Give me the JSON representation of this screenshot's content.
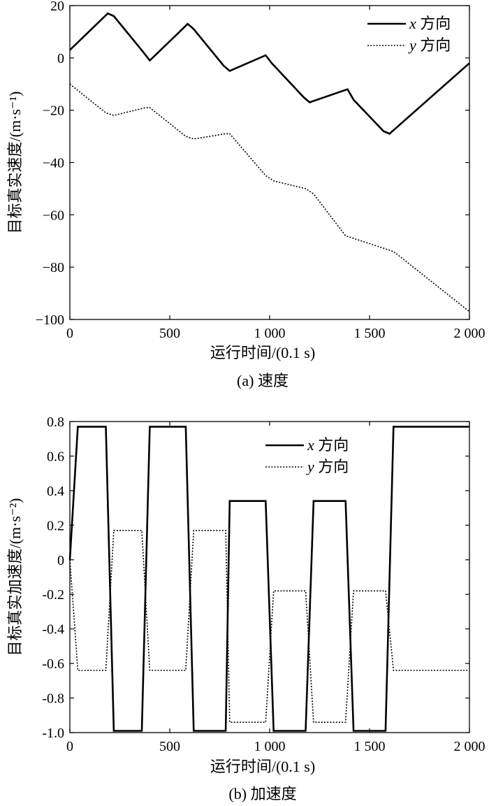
{
  "chart_data": [
    {
      "type": "line",
      "caption": "(a) 速度",
      "xlabel": "运行时间/(0.1 s)",
      "ylabel": "目标真实速度/(m·s⁻¹)",
      "xlim": [
        0,
        2000
      ],
      "ylim": [
        -100,
        20
      ],
      "xticks": [
        0,
        500,
        1000,
        1500,
        2000
      ],
      "xtick_labels": [
        "0",
        "500",
        "1 000",
        "1 500",
        "2 000"
      ],
      "yticks": [
        20,
        0,
        -20,
        -40,
        -60,
        -80,
        -100
      ],
      "ytick_labels": [
        "20",
        "0",
        "−20",
        "−40",
        "−60",
        "−80",
        "−100"
      ],
      "grid": false,
      "legend_position": "top-right",
      "series": [
        {
          "name": "x 方向",
          "style": "solid",
          "x": [
            0,
            190,
            220,
            370,
            400,
            590,
            620,
            770,
            800,
            980,
            1010,
            1170,
            1200,
            1390,
            1420,
            1570,
            1600,
            2000
          ],
          "y": [
            3,
            17,
            16,
            2,
            -1,
            13,
            11,
            -3,
            -5,
            1,
            -2,
            -15,
            -17,
            -12,
            -16,
            -28,
            -29,
            -2
          ]
        },
        {
          "name": "y 方向",
          "style": "dotted",
          "x": [
            0,
            180,
            220,
            380,
            400,
            580,
            620,
            780,
            800,
            980,
            1020,
            1180,
            1220,
            1380,
            1420,
            1580,
            1620,
            2000
          ],
          "y": [
            -10,
            -21,
            -22,
            -19,
            -19,
            -30,
            -31,
            -29,
            -29,
            -45,
            -47,
            -50,
            -52,
            -68,
            -69,
            -73,
            -74,
            -97
          ]
        }
      ]
    },
    {
      "type": "line",
      "caption": "(b) 加速度",
      "xlabel": "运行时间/(0.1 s)",
      "ylabel": "目标真实加速度/(m·s⁻²)",
      "xlim": [
        0,
        2000
      ],
      "ylim": [
        -1.0,
        0.8
      ],
      "xticks": [
        0,
        500,
        1000,
        1500,
        2000
      ],
      "xtick_labels": [
        "0",
        "500",
        "1 000",
        "1 500",
        "2 000"
      ],
      "yticks": [
        0.8,
        0.6,
        0.4,
        0.2,
        0,
        -0.2,
        -0.4,
        -0.6,
        -0.8,
        -1.0
      ],
      "ytick_labels": [
        "0.8",
        "0.6",
        "0.4",
        "0.2",
        "0",
        "-0.2",
        "-0.4",
        "-0.6",
        "-0.8",
        "-1.0"
      ],
      "grid": false,
      "legend_position": "top-right",
      "series": [
        {
          "name": "x 方向",
          "style": "solid",
          "x": [
            0,
            40,
            180,
            220,
            360,
            400,
            580,
            620,
            780,
            800,
            980,
            1020,
            1180,
            1220,
            1380,
            1420,
            1580,
            1620,
            2000
          ],
          "y": [
            0,
            0.77,
            0.77,
            -0.99,
            -0.99,
            0.77,
            0.77,
            -0.99,
            -0.99,
            0.34,
            0.34,
            -0.99,
            -0.99,
            0.34,
            0.34,
            -0.99,
            -0.99,
            0.77,
            0.77
          ]
        },
        {
          "name": "y 方向",
          "style": "dotted",
          "x": [
            0,
            40,
            180,
            220,
            360,
            400,
            580,
            620,
            780,
            800,
            980,
            1020,
            1180,
            1220,
            1380,
            1420,
            1580,
            1620,
            2000
          ],
          "y": [
            0,
            -0.64,
            -0.64,
            0.17,
            0.17,
            -0.64,
            -0.64,
            0.17,
            0.17,
            -0.94,
            -0.94,
            -0.18,
            -0.18,
            -0.94,
            -0.94,
            -0.18,
            -0.18,
            -0.64,
            -0.64
          ]
        }
      ]
    }
  ]
}
